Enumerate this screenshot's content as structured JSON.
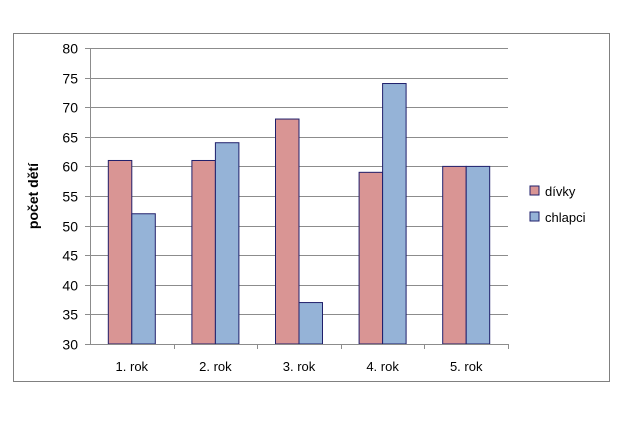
{
  "chart_data": {
    "type": "bar",
    "categories": [
      "1. rok",
      "2. rok",
      "3. rok",
      "4. rok",
      "5. rok"
    ],
    "series": [
      {
        "name": "dívky",
        "values": [
          61,
          61,
          68,
          59,
          60
        ],
        "color": "#d99594",
        "stroke": "#1f1f6b"
      },
      {
        "name": "chlapci",
        "values": [
          52,
          64,
          37,
          74,
          60
        ],
        "color": "#95b3d7",
        "stroke": "#1f1f6b"
      }
    ],
    "ylabel": "počet dětí",
    "xlabel": "",
    "ylim": [
      30,
      80
    ],
    "yticks": [
      30,
      35,
      40,
      45,
      50,
      55,
      60,
      65,
      70,
      75,
      80
    ],
    "grid": true,
    "legend": "right"
  }
}
